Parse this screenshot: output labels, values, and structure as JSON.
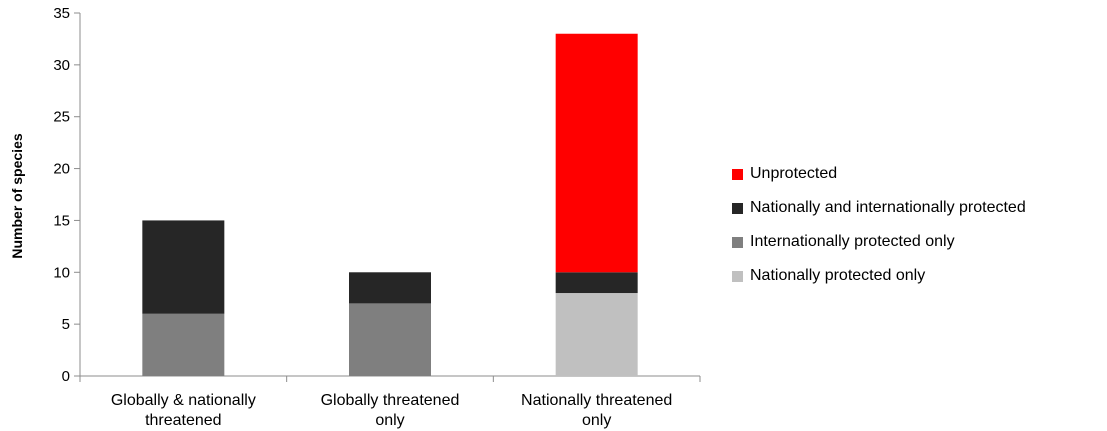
{
  "chart_data": {
    "type": "bar",
    "stacked": true,
    "categories": [
      [
        "Globally & nationally",
        "threatened"
      ],
      [
        "Globally threatened",
        "only"
      ],
      [
        "Nationally threatened",
        "only"
      ]
    ],
    "series": [
      {
        "name": "Nationally protected only",
        "color": "#c0c0c0",
        "values": [
          0,
          0,
          8
        ]
      },
      {
        "name": "Internationally protected only",
        "color": "#7f7f7f",
        "values": [
          6,
          7,
          0
        ]
      },
      {
        "name": "Nationally and internationally protected",
        "color": "#262626",
        "values": [
          9,
          3,
          2
        ]
      },
      {
        "name": "Unprotected",
        "color": "#ff0000",
        "values": [
          0,
          0,
          23
        ]
      }
    ],
    "legend_order": [
      "Unprotected",
      "Nationally and internationally protected",
      "Internationally protected only",
      "Nationally protected only"
    ],
    "ylabel": "Number of species",
    "xlabel": "",
    "ylim": [
      0,
      35
    ],
    "yticks": [
      0,
      5,
      10,
      15,
      20,
      25,
      30,
      35
    ],
    "grid": false,
    "legend_position": "right"
  }
}
